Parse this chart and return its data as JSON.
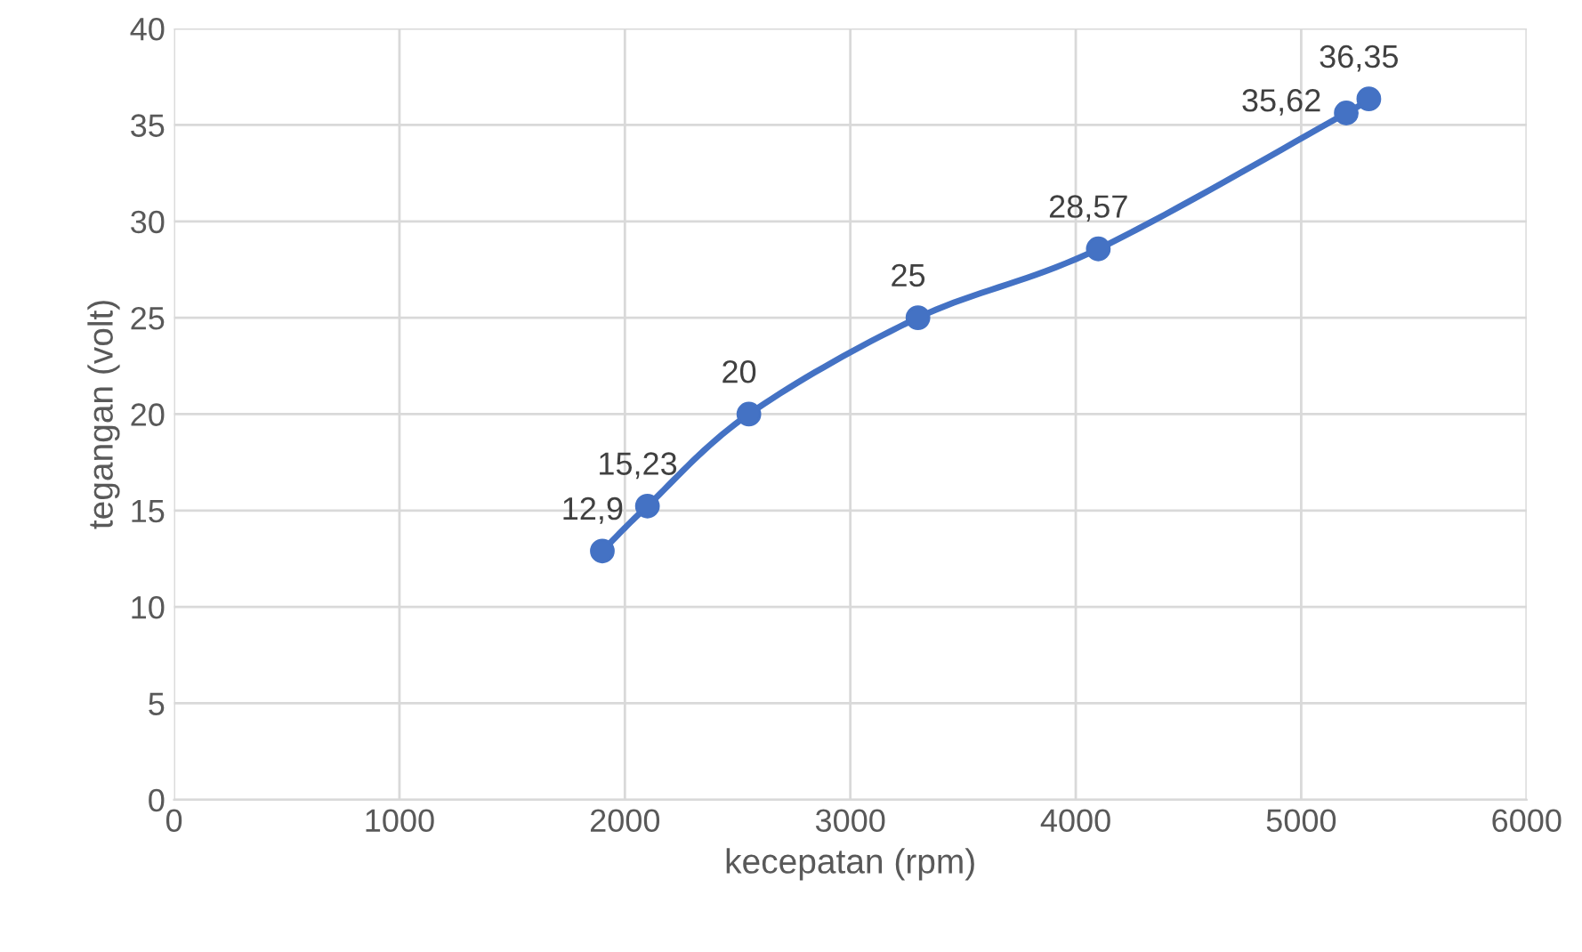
{
  "chart_data": {
    "type": "line",
    "xlabel": "kecepatan (rpm)",
    "ylabel": "tegangan (volt)",
    "x": [
      1900,
      2100,
      2550,
      3300,
      4100,
      5200,
      5300
    ],
    "values": [
      12.9,
      15.23,
      20,
      25,
      28.57,
      35.62,
      36.35
    ],
    "value_labels": [
      "12,9",
      "15,23",
      "20",
      "25",
      "28,57",
      "35,62",
      "36,35"
    ],
    "color": "#4472c4",
    "marker": "circle",
    "line_style": "solid",
    "grid": true,
    "xlim": [
      0,
      6000
    ],
    "xticks": [
      0,
      1000,
      2000,
      3000,
      4000,
      5000,
      6000
    ],
    "ylim": [
      0,
      40
    ],
    "yticks": [
      0,
      5,
      10,
      15,
      20,
      25,
      30,
      35,
      40
    ]
  }
}
